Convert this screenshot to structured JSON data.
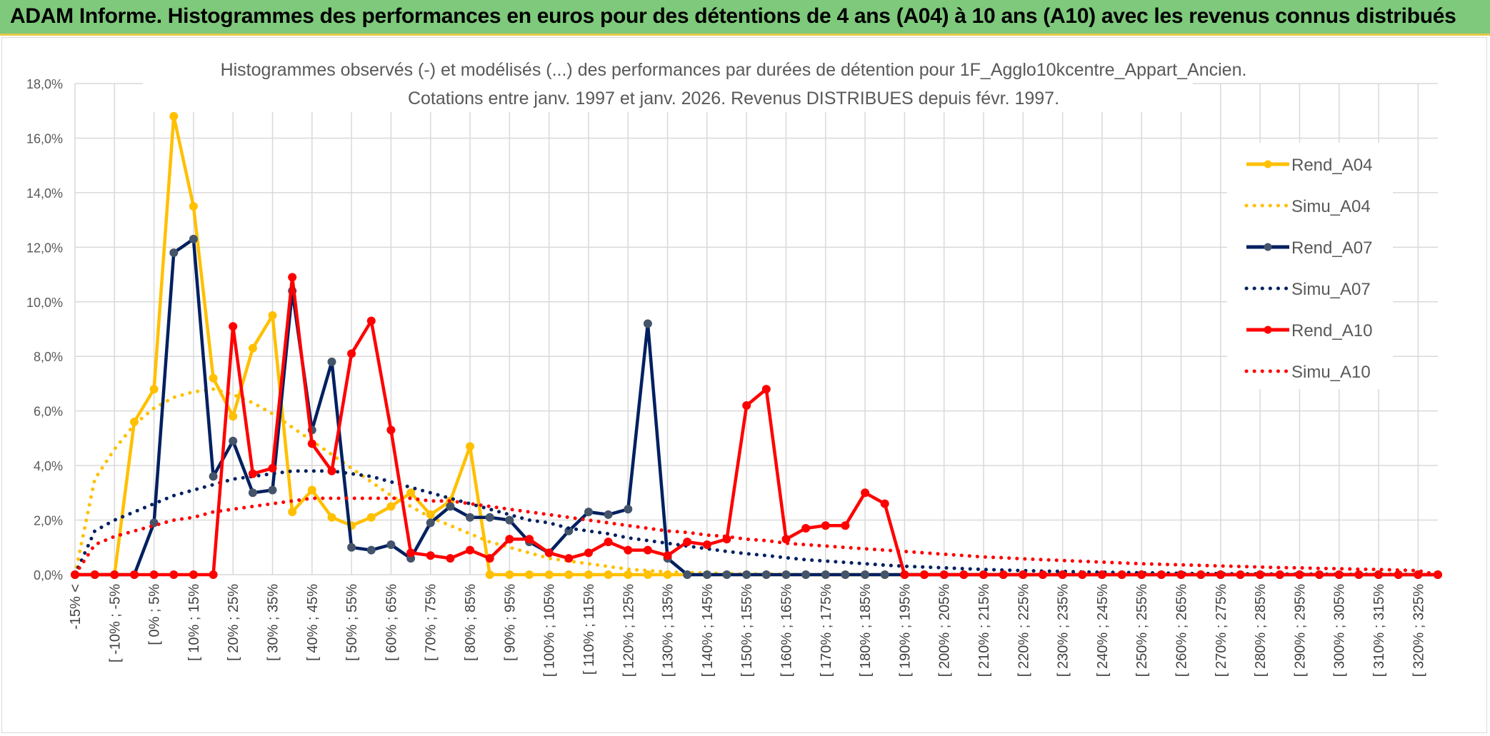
{
  "banner": {
    "title": "ADAM Informe. Histogrammes des performances en euros pour des détentions de 4 ans (A04) à 10 ans (A10) avec les revenus connus distribués"
  },
  "chart_data": {
    "type": "line",
    "title_line1": "Histogrammes observés (-) et modélisés (...) des performances par durées de détention pour 1F_Agglo10kcentre_Appart_Ancien.",
    "title_line2": "Cotations entre janv. 1997 et janv. 2026. Revenus DISTRIBUES depuis févr. 1997.",
    "ylim": [
      0,
      18
    ],
    "y_ticks": [
      "0,0%",
      "2,0%",
      "4,0%",
      "6,0%",
      "8,0%",
      "10,0%",
      "12,0%",
      "14,0%",
      "16,0%",
      "18,0%"
    ],
    "x_tick_labels": [
      "-15% <",
      "[ -10% ; -5%",
      "[ 0% ; 5%",
      "[ 10% ; 15%",
      "[ 20% ; 25%",
      "[ 30% ; 35%",
      "[ 40% ; 45%",
      "[ 50% ; 55%",
      "[ 60% ; 65%",
      "[ 70% ; 75%",
      "[ 80% ; 85%",
      "[ 90% ; 95%",
      "[ 100% ; 105%",
      "[ 110% ; 115%",
      "[ 120% ; 125%",
      "[ 130% ; 135%",
      "[ 140% ; 145%",
      "[ 150% ; 155%",
      "[ 160% ; 165%",
      "[ 170% ; 175%",
      "[ 180% ; 185%",
      "[ 190% ; 195%",
      "[ 200% ; 205%",
      "[ 210% ; 215%",
      "[ 220% ; 225%",
      "[ 230% ; 235%",
      "[ 240% ; 245%",
      "[ 250% ; 255%",
      "[ 260% ; 265%",
      "[ 270% ; 275%",
      "[ 280% ; 285%",
      "[ 290% ; 295%",
      "[ 300% ; 305%",
      "[ 310% ; 315%",
      "[ 320% ; 325%"
    ],
    "n_categories": 70,
    "series": [
      {
        "name": "Rend_A04",
        "color": "#ffc000",
        "style": "solid",
        "values": [
          0,
          0,
          0,
          5.6,
          6.8,
          16.8,
          13.5,
          7.2,
          5.8,
          8.3,
          9.5,
          2.3,
          3.1,
          2.1,
          1.8,
          2.1,
          2.5,
          3.0,
          2.2,
          2.7,
          4.7,
          0,
          0,
          0,
          0,
          0,
          0,
          0,
          0,
          0,
          0,
          0,
          0,
          0,
          0,
          0,
          0,
          0,
          0,
          0,
          0,
          0,
          0,
          0,
          0,
          0,
          0,
          0,
          0,
          0,
          0,
          0,
          0,
          0,
          0,
          0,
          0,
          0,
          0,
          0,
          0,
          0,
          0,
          0,
          0,
          0,
          0,
          0,
          0,
          0
        ]
      },
      {
        "name": "Simu_A04",
        "color": "#ffc000",
        "style": "dotted",
        "values": [
          0,
          3.5,
          4.6,
          5.5,
          6.1,
          6.5,
          6.7,
          6.8,
          6.6,
          6.3,
          5.9,
          5.4,
          4.9,
          4.4,
          3.9,
          3.4,
          2.9,
          2.5,
          2.1,
          1.8,
          1.5,
          1.2,
          1.0,
          0.8,
          0.6,
          0.5,
          0.4,
          0.3,
          0.2,
          0.15,
          0.1,
          0.08,
          0.06,
          0.04,
          0.03,
          0.02,
          0.01,
          0,
          0,
          0,
          0,
          0,
          0,
          0,
          0,
          0,
          0,
          0,
          0,
          0,
          0,
          0,
          0,
          0,
          0,
          0,
          0,
          0,
          0,
          0,
          0,
          0,
          0,
          0,
          0,
          0,
          0,
          0,
          0,
          0
        ]
      },
      {
        "name": "Rend_A07",
        "color": "#002060",
        "style": "solid",
        "values": [
          0,
          0,
          0,
          0,
          1.9,
          11.8,
          12.3,
          3.6,
          4.9,
          3.0,
          3.1,
          10.4,
          5.3,
          7.8,
          1.0,
          0.9,
          1.1,
          0.6,
          1.9,
          2.5,
          2.1,
          2.1,
          2.0,
          1.2,
          0.8,
          1.6,
          2.3,
          2.2,
          2.4,
          9.2,
          0.6,
          0,
          0,
          0,
          0,
          0,
          0,
          0,
          0,
          0,
          0,
          0,
          0,
          0,
          0,
          0,
          0,
          0,
          0,
          0,
          0,
          0,
          0,
          0,
          0,
          0,
          0,
          0,
          0,
          0,
          0,
          0,
          0,
          0,
          0,
          0,
          0,
          0,
          0,
          0
        ]
      },
      {
        "name": "Simu_A07",
        "color": "#002060",
        "style": "dotted",
        "values": [
          0,
          1.6,
          2.0,
          2.3,
          2.6,
          2.9,
          3.1,
          3.3,
          3.5,
          3.6,
          3.7,
          3.8,
          3.8,
          3.8,
          3.7,
          3.6,
          3.4,
          3.2,
          3.0,
          2.8,
          2.6,
          2.4,
          2.2,
          2.0,
          1.9,
          1.7,
          1.6,
          1.5,
          1.35,
          1.25,
          1.15,
          1.05,
          0.95,
          0.85,
          0.77,
          0.7,
          0.62,
          0.55,
          0.5,
          0.45,
          0.4,
          0.35,
          0.31,
          0.28,
          0.25,
          0.22,
          0.19,
          0.17,
          0.15,
          0.13,
          0.12,
          0.1,
          0.09,
          0.08,
          0.07,
          0.06,
          0.05,
          0.04,
          0.04,
          0.03,
          0.03,
          0.02,
          0.02,
          0.02,
          0.01,
          0.01,
          0.01,
          0.01,
          0,
          0
        ]
      },
      {
        "name": "Rend_A10",
        "color": "#ff0000",
        "style": "solid",
        "values": [
          0,
          0,
          0,
          0,
          0,
          0,
          0,
          0,
          9.1,
          3.7,
          3.9,
          10.9,
          4.8,
          3.8,
          8.1,
          9.3,
          5.3,
          0.8,
          0.7,
          0.6,
          0.9,
          0.6,
          1.3,
          1.3,
          0.8,
          0.6,
          0.8,
          1.2,
          0.9,
          0.9,
          0.7,
          1.2,
          1.1,
          1.3,
          6.2,
          6.8,
          1.3,
          1.7,
          1.8,
          1.8,
          3.0,
          2.6,
          0,
          0,
          0,
          0,
          0,
          0,
          0,
          0,
          0,
          0,
          0,
          0,
          0,
          0,
          0,
          0,
          0,
          0,
          0,
          0,
          0,
          0,
          0,
          0,
          0,
          0,
          0,
          0
        ]
      },
      {
        "name": "Simu_A10",
        "color": "#ff0000",
        "style": "dotted",
        "values": [
          0,
          1.1,
          1.4,
          1.6,
          1.8,
          2.0,
          2.1,
          2.3,
          2.4,
          2.5,
          2.6,
          2.7,
          2.8,
          2.8,
          2.8,
          2.8,
          2.8,
          2.8,
          2.7,
          2.7,
          2.6,
          2.5,
          2.4,
          2.3,
          2.2,
          2.1,
          2.0,
          1.9,
          1.8,
          1.7,
          1.6,
          1.55,
          1.45,
          1.4,
          1.3,
          1.25,
          1.15,
          1.1,
          1.05,
          1.0,
          0.95,
          0.9,
          0.85,
          0.8,
          0.75,
          0.7,
          0.65,
          0.62,
          0.58,
          0.55,
          0.52,
          0.49,
          0.46,
          0.43,
          0.4,
          0.38,
          0.36,
          0.34,
          0.32,
          0.3,
          0.28,
          0.26,
          0.25,
          0.23,
          0.22,
          0.2,
          0.19,
          0.17,
          0.15,
          0
        ]
      }
    ]
  }
}
